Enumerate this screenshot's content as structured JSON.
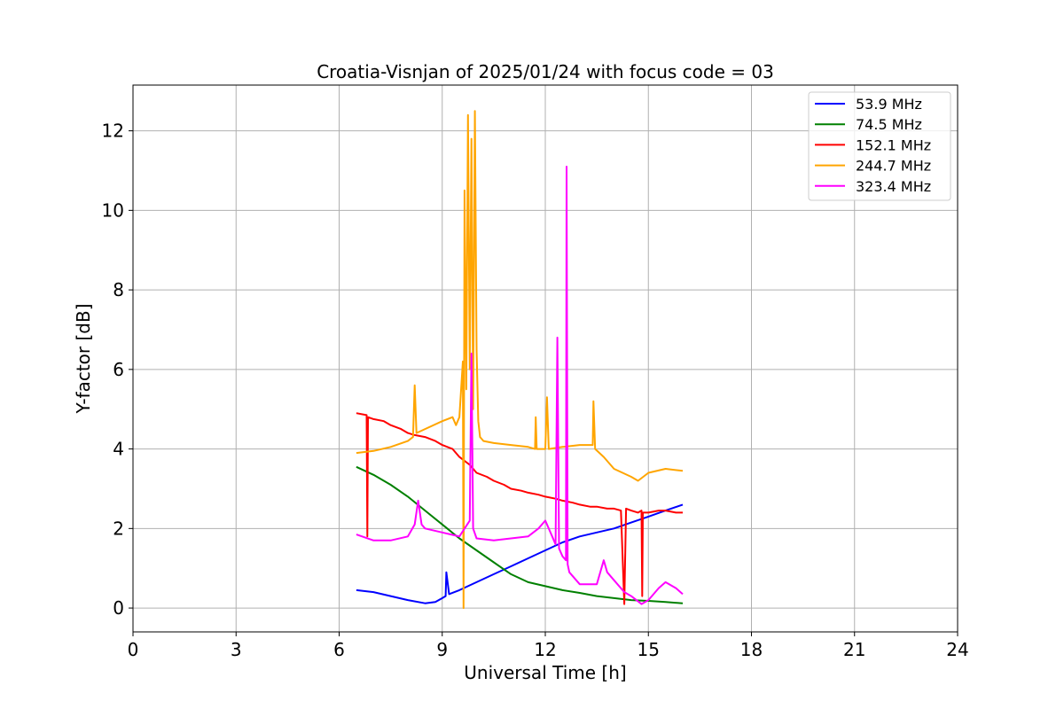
{
  "chart_data": {
    "type": "line",
    "title": "Croatia-Visnjan of 2025/01/24 with focus code = 03",
    "xlabel": "Universal Time [h]",
    "ylabel": "Y-factor [dB]",
    "xlim": [
      0,
      24
    ],
    "ylim": [
      -0.6,
      13.15
    ],
    "xticks": [
      0,
      3,
      6,
      9,
      12,
      15,
      18,
      21,
      24
    ],
    "yticks": [
      0,
      2,
      4,
      6,
      8,
      10,
      12
    ],
    "grid": true,
    "legend_position": "top-right",
    "series": [
      {
        "name": " 53.9 MHz",
        "color": "#0000ff",
        "x": [
          6.5,
          7.0,
          7.5,
          8.0,
          8.5,
          8.8,
          9.0,
          9.1,
          9.12,
          9.2,
          9.5,
          10.0,
          10.5,
          11.0,
          11.5,
          12.0,
          12.5,
          13.0,
          13.5,
          14.0,
          14.5,
          15.0,
          15.5,
          16.0
        ],
        "y": [
          0.45,
          0.4,
          0.3,
          0.2,
          0.12,
          0.15,
          0.25,
          0.3,
          0.9,
          0.35,
          0.45,
          0.65,
          0.85,
          1.05,
          1.25,
          1.45,
          1.65,
          1.8,
          1.9,
          2.0,
          2.15,
          2.3,
          2.45,
          2.6
        ]
      },
      {
        "name": " 74.5 MHz",
        "color": "#008000",
        "x": [
          6.5,
          7.0,
          7.5,
          8.0,
          8.5,
          9.0,
          9.5,
          10.0,
          10.5,
          11.0,
          11.5,
          12.0,
          12.5,
          13.0,
          13.5,
          14.0,
          14.5,
          15.0,
          15.5,
          16.0
        ],
        "y": [
          3.55,
          3.35,
          3.1,
          2.8,
          2.45,
          2.1,
          1.75,
          1.45,
          1.15,
          0.85,
          0.65,
          0.55,
          0.45,
          0.38,
          0.3,
          0.25,
          0.2,
          0.18,
          0.15,
          0.12
        ]
      },
      {
        "name": " 152.1 MHz",
        "color": "#ff0000",
        "x": [
          6.5,
          6.8,
          6.82,
          6.84,
          7.0,
          7.3,
          7.5,
          7.8,
          8.0,
          8.2,
          8.5,
          8.8,
          9.0,
          9.3,
          9.5,
          9.8,
          10.0,
          10.3,
          10.5,
          10.8,
          11.0,
          11.3,
          11.5,
          11.8,
          12.0,
          12.3,
          12.5,
          12.8,
          13.0,
          13.3,
          13.5,
          13.8,
          14.0,
          14.2,
          14.3,
          14.35,
          14.5,
          14.7,
          14.8,
          14.82,
          14.84,
          15.0,
          15.3,
          15.5,
          15.8,
          16.0
        ],
        "y": [
          4.9,
          4.85,
          1.8,
          4.8,
          4.75,
          4.7,
          4.6,
          4.5,
          4.4,
          4.35,
          4.3,
          4.2,
          4.1,
          4.0,
          3.8,
          3.6,
          3.4,
          3.3,
          3.2,
          3.1,
          3.0,
          2.95,
          2.9,
          2.85,
          2.8,
          2.75,
          2.7,
          2.65,
          2.6,
          2.55,
          2.55,
          2.5,
          2.5,
          2.45,
          0.1,
          2.5,
          2.45,
          2.4,
          2.45,
          0.3,
          2.4,
          2.4,
          2.45,
          2.45,
          2.4,
          2.4
        ]
      },
      {
        "name": " 244.7 MHz",
        "color": "#ffa500",
        "x": [
          6.5,
          7.0,
          7.5,
          8.0,
          8.15,
          8.2,
          8.25,
          8.5,
          9.0,
          9.3,
          9.4,
          9.5,
          9.6,
          9.62,
          9.65,
          9.7,
          9.75,
          9.8,
          9.85,
          9.9,
          9.95,
          10.0,
          10.05,
          10.1,
          10.2,
          10.5,
          11.0,
          11.5,
          11.7,
          11.72,
          11.75,
          12.0,
          12.05,
          12.1,
          12.5,
          13.0,
          13.38,
          13.4,
          13.45,
          13.7,
          14.0,
          14.5,
          14.7,
          15.0,
          15.5,
          16.0
        ],
        "y": [
          3.9,
          3.95,
          4.05,
          4.2,
          4.3,
          5.6,
          4.4,
          4.5,
          4.7,
          4.8,
          4.6,
          4.8,
          6.2,
          0.0,
          10.5,
          5.5,
          12.4,
          6.0,
          11.8,
          5.0,
          12.5,
          6.5,
          4.7,
          4.3,
          4.2,
          4.15,
          4.1,
          4.05,
          4.0,
          4.8,
          4.0,
          4.0,
          5.3,
          4.0,
          4.05,
          4.1,
          4.1,
          5.2,
          4.0,
          3.8,
          3.5,
          3.3,
          3.2,
          3.4,
          3.5,
          3.45
        ]
      },
      {
        "name": " 323.4 MHz",
        "color": "#ff00ff",
        "x": [
          6.5,
          7.0,
          7.5,
          8.0,
          8.2,
          8.3,
          8.4,
          8.5,
          9.0,
          9.5,
          9.8,
          9.85,
          9.9,
          10.0,
          10.5,
          11.0,
          11.5,
          11.8,
          12.0,
          12.2,
          12.3,
          12.35,
          12.4,
          12.5,
          12.6,
          12.62,
          12.65,
          12.7,
          13.0,
          13.5,
          13.7,
          13.8,
          14.0,
          14.3,
          14.5,
          14.8,
          15.0,
          15.3,
          15.5,
          15.8,
          16.0
        ],
        "y": [
          1.85,
          1.7,
          1.7,
          1.8,
          2.1,
          2.7,
          2.1,
          2.0,
          1.9,
          1.8,
          2.2,
          6.4,
          2.0,
          1.75,
          1.7,
          1.75,
          1.8,
          2.0,
          2.2,
          1.8,
          1.6,
          6.8,
          1.5,
          1.3,
          1.2,
          11.1,
          1.1,
          0.9,
          0.6,
          0.6,
          1.2,
          0.9,
          0.7,
          0.4,
          0.3,
          0.1,
          0.2,
          0.5,
          0.65,
          0.5,
          0.35
        ]
      }
    ]
  }
}
